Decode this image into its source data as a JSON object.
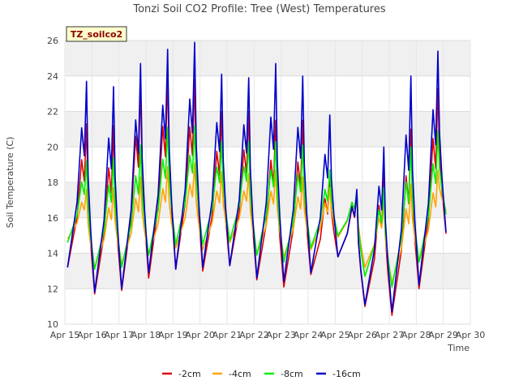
{
  "chart_data": {
    "type": "line",
    "title": "Tonzi Soil CO2 Profile: Tree (West) Temperatures",
    "xlabel": "Time",
    "ylabel": "Soil Temperature (C)",
    "badge": "TZ_soilco2",
    "ylim": [
      10,
      26
    ],
    "yticks": [
      10,
      12,
      14,
      16,
      18,
      20,
      22,
      24,
      26
    ],
    "xlim": [
      15,
      30
    ],
    "xticks": [
      15,
      16,
      17,
      18,
      19,
      20,
      21,
      22,
      23,
      24,
      25,
      26,
      27,
      28,
      29,
      30
    ],
    "xtick_labels": [
      "Apr 15",
      "Apr 16",
      "Apr 17",
      "Apr 18",
      "Apr 19",
      "Apr 20",
      "Apr 21",
      "Apr 22",
      "Apr 23",
      "Apr 24",
      "Apr 25",
      "Apr 26",
      "Apr 27",
      "Apr 28",
      "Apr 29",
      "Apr 30"
    ],
    "grid": true,
    "legend_position": "bottom",
    "days": [
      15,
      16,
      17,
      18,
      19,
      20,
      21,
      22,
      23,
      24,
      25,
      26,
      27,
      28,
      29
    ],
    "series": [
      {
        "name": "-2cm",
        "color": "#dd0000",
        "min": [
          13.2,
          11.7,
          11.9,
          12.6,
          13.1,
          13.0,
          13.3,
          12.5,
          12.1,
          12.8,
          13.8,
          11.0,
          10.5,
          12.0,
          15.1
        ],
        "max": [
          null,
          21.3,
          21.2,
          23.5,
          24.0,
          23.8,
          22.0,
          22.0,
          21.5,
          21.5,
          18.5,
          17.5,
          18.6,
          21.0,
          23.3
        ]
      },
      {
        "name": "-4cm",
        "color": "#ffa500",
        "min": [
          14.7,
          13.2,
          13.4,
          13.9,
          14.3,
          14.2,
          14.6,
          13.9,
          13.8,
          14.2,
          14.9,
          13.2,
          12.3,
          13.5,
          16.4
        ],
        "max": [
          null,
          17.6,
          17.7,
          18.3,
          18.9,
          19.1,
          18.6,
          18.5,
          18.7,
          18.3,
          17.7,
          17.5,
          16.9,
          17.9,
          18.7
        ]
      },
      {
        "name": "-8cm",
        "color": "#00ee00",
        "min": [
          14.5,
          13.1,
          13.2,
          13.9,
          14.5,
          14.5,
          14.7,
          13.9,
          13.5,
          14.3,
          15.0,
          12.7,
          12.1,
          13.5,
          16.2
        ],
        "max": [
          null,
          19.2,
          19.4,
          20.1,
          21.1,
          21.2,
          20.3,
          20.3,
          20.3,
          20.1,
          18.7,
          17.5,
          17.7,
          20.0,
          20.9
        ]
      },
      {
        "name": "-16cm",
        "color": "#0000cc",
        "min": [
          13.2,
          11.8,
          12.0,
          12.9,
          13.1,
          13.2,
          13.3,
          12.6,
          12.4,
          12.9,
          13.8,
          11.1,
          10.7,
          12.2,
          15.2
        ],
        "max": [
          null,
          23.7,
          23.4,
          24.7,
          25.5,
          25.9,
          24.1,
          23.9,
          24.7,
          24.0,
          21.8,
          17.6,
          20.0,
          24.0,
          25.4
        ]
      }
    ]
  }
}
